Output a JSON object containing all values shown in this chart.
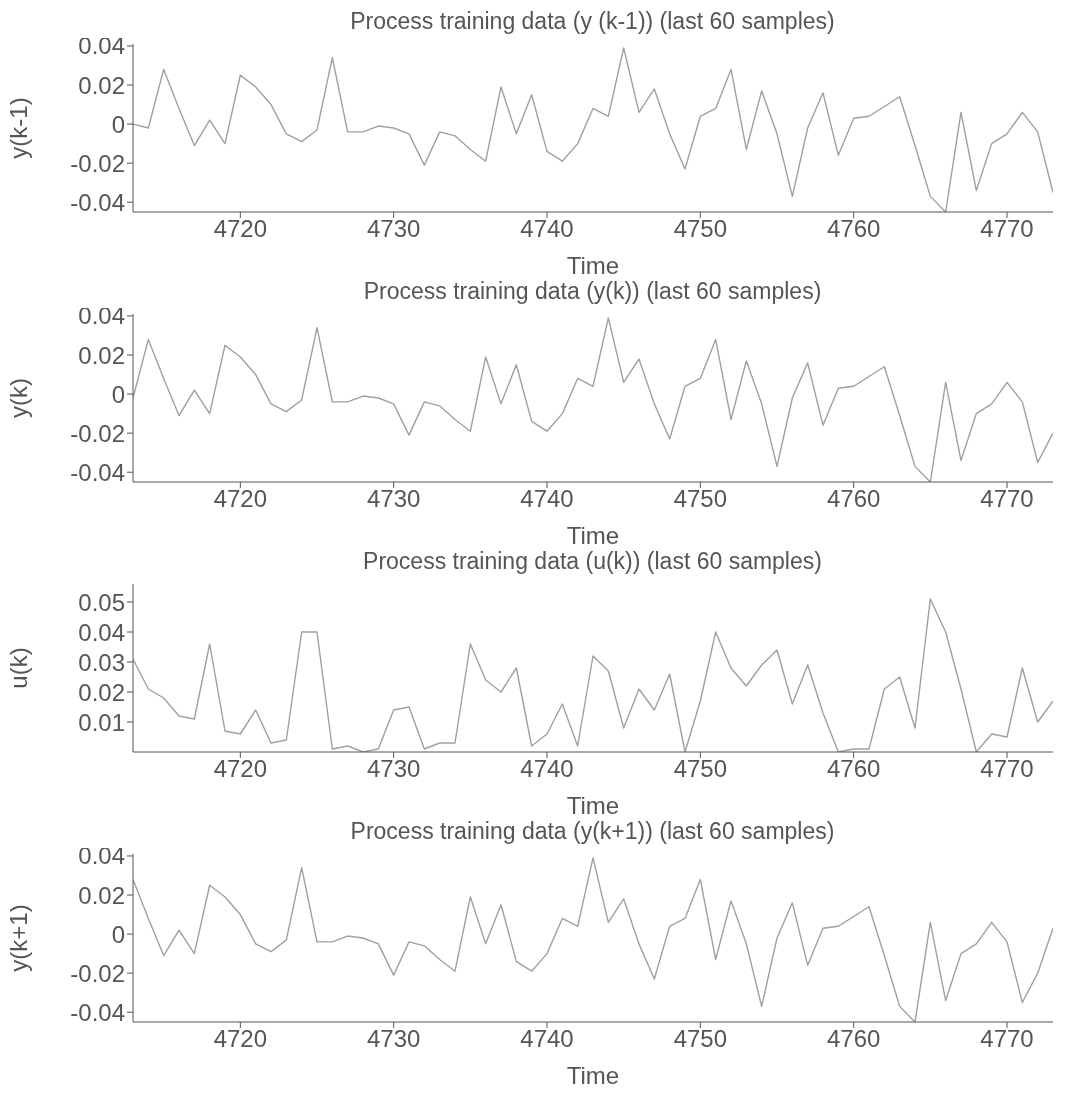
{
  "chart_data": [
    {
      "type": "line",
      "title": "Process training data (y (k-1)) (last 60 samples)",
      "xlabel": "Time",
      "ylabel": "y(k-1)",
      "color": "#a0a0a0",
      "xlim": [
        4713,
        4773
      ],
      "xticks": [
        4720,
        4730,
        4740,
        4750,
        4760,
        4770
      ],
      "ylim": [
        -0.045,
        0.041
      ],
      "yticks": [
        -0.04,
        -0.02,
        0,
        0.02,
        0.04
      ],
      "x": [
        4713,
        4714,
        4715,
        4716,
        4717,
        4718,
        4719,
        4720,
        4721,
        4722,
        4723,
        4724,
        4725,
        4726,
        4727,
        4728,
        4729,
        4730,
        4731,
        4732,
        4733,
        4734,
        4735,
        4736,
        4737,
        4738,
        4739,
        4740,
        4741,
        4742,
        4743,
        4744,
        4745,
        4746,
        4747,
        4748,
        4749,
        4750,
        4751,
        4752,
        4753,
        4754,
        4755,
        4756,
        4757,
        4758,
        4759,
        4760,
        4761,
        4762,
        4763,
        4764,
        4765,
        4766,
        4767,
        4768,
        4769,
        4770,
        4771,
        4772,
        4773
      ],
      "values": [
        0.0,
        -0.002,
        0.028,
        0.008,
        -0.011,
        0.002,
        -0.01,
        0.025,
        0.019,
        0.01,
        -0.005,
        -0.009,
        -0.003,
        0.034,
        -0.004,
        -0.004,
        -0.001,
        -0.002,
        -0.005,
        -0.021,
        -0.004,
        -0.006,
        -0.013,
        -0.019,
        0.019,
        -0.005,
        0.015,
        -0.014,
        -0.019,
        -0.01,
        0.008,
        0.004,
        0.039,
        0.006,
        0.018,
        -0.005,
        -0.023,
        0.004,
        0.008,
        0.028,
        -0.013,
        0.017,
        -0.005,
        -0.037,
        -0.002,
        0.016,
        -0.016,
        0.003,
        0.004,
        0.009,
        0.014,
        -0.011,
        -0.037,
        -0.045,
        0.006,
        -0.034,
        -0.01,
        -0.005,
        0.006,
        -0.004,
        -0.035
      ]
    },
    {
      "type": "line",
      "title": "Process training data (y(k)) (last 60 samples)",
      "xlabel": "Time",
      "ylabel": "y(k)",
      "color": "#a0a0a0",
      "xlim": [
        4713,
        4773
      ],
      "xticks": [
        4720,
        4730,
        4740,
        4750,
        4760,
        4770
      ],
      "ylim": [
        -0.045,
        0.041
      ],
      "yticks": [
        -0.04,
        -0.02,
        0,
        0.02,
        0.04
      ],
      "x": [
        4713,
        4714,
        4715,
        4716,
        4717,
        4718,
        4719,
        4720,
        4721,
        4722,
        4723,
        4724,
        4725,
        4726,
        4727,
        4728,
        4729,
        4730,
        4731,
        4732,
        4733,
        4734,
        4735,
        4736,
        4737,
        4738,
        4739,
        4740,
        4741,
        4742,
        4743,
        4744,
        4745,
        4746,
        4747,
        4748,
        4749,
        4750,
        4751,
        4752,
        4753,
        4754,
        4755,
        4756,
        4757,
        4758,
        4759,
        4760,
        4761,
        4762,
        4763,
        4764,
        4765,
        4766,
        4767,
        4768,
        4769,
        4770,
        4771,
        4772,
        4773
      ],
      "values": [
        -0.002,
        0.028,
        0.008,
        -0.011,
        0.002,
        -0.01,
        0.025,
        0.019,
        0.01,
        -0.005,
        -0.009,
        -0.003,
        0.034,
        -0.004,
        -0.004,
        -0.001,
        -0.002,
        -0.005,
        -0.021,
        -0.004,
        -0.006,
        -0.013,
        -0.019,
        0.019,
        -0.005,
        0.015,
        -0.014,
        -0.019,
        -0.01,
        0.008,
        0.004,
        0.039,
        0.006,
        0.018,
        -0.005,
        -0.023,
        0.004,
        0.008,
        0.028,
        -0.013,
        0.017,
        -0.005,
        -0.037,
        -0.002,
        0.016,
        -0.016,
        0.003,
        0.004,
        0.009,
        0.014,
        -0.011,
        -0.037,
        -0.045,
        0.006,
        -0.034,
        -0.01,
        -0.005,
        0.006,
        -0.004,
        -0.035,
        -0.02
      ]
    },
    {
      "type": "line",
      "title": "Process training data (u(k)) (last 60 samples)",
      "xlabel": "Time",
      "ylabel": "u(k)",
      "color": "#a0a0a0",
      "xlim": [
        4713,
        4773
      ],
      "xticks": [
        4720,
        4730,
        4740,
        4750,
        4760,
        4770
      ],
      "ylim": [
        0,
        0.056
      ],
      "yticks": [
        0.01,
        0.02,
        0.03,
        0.04,
        0.05
      ],
      "x": [
        4713,
        4714,
        4715,
        4716,
        4717,
        4718,
        4719,
        4720,
        4721,
        4722,
        4723,
        4724,
        4725,
        4726,
        4727,
        4728,
        4729,
        4730,
        4731,
        4732,
        4733,
        4734,
        4735,
        4736,
        4737,
        4738,
        4739,
        4740,
        4741,
        4742,
        4743,
        4744,
        4745,
        4746,
        4747,
        4748,
        4749,
        4750,
        4751,
        4752,
        4753,
        4754,
        4755,
        4756,
        4757,
        4758,
        4759,
        4760,
        4761,
        4762,
        4763,
        4764,
        4765,
        4766,
        4767,
        4768,
        4769,
        4770,
        4771,
        4772,
        4773
      ],
      "values": [
        0.031,
        0.021,
        0.018,
        0.012,
        0.011,
        0.036,
        0.007,
        0.006,
        0.014,
        0.003,
        0.004,
        0.04,
        0.04,
        0.001,
        0.002,
        0.0,
        0.001,
        0.014,
        0.015,
        0.001,
        0.003,
        0.003,
        0.036,
        0.024,
        0.02,
        0.028,
        0.002,
        0.006,
        0.016,
        0.002,
        0.032,
        0.027,
        0.008,
        0.021,
        0.014,
        0.026,
        0.0,
        0.017,
        0.04,
        0.028,
        0.022,
        0.029,
        0.034,
        0.016,
        0.029,
        0.013,
        0.0,
        0.001,
        0.001,
        0.021,
        0.025,
        0.008,
        0.051,
        0.04,
        0.021,
        0.0,
        0.006,
        0.005,
        0.028,
        0.01,
        0.017
      ]
    },
    {
      "type": "line",
      "title": "Process training data (y(k+1)) (last 60 samples)",
      "xlabel": "Time",
      "ylabel": "y(k+1)",
      "color": "#a0a0a0",
      "xlim": [
        4713,
        4773
      ],
      "xticks": [
        4720,
        4730,
        4740,
        4750,
        4760,
        4770
      ],
      "ylim": [
        -0.045,
        0.041
      ],
      "yticks": [
        -0.04,
        -0.02,
        0,
        0.02,
        0.04
      ],
      "x": [
        4713,
        4714,
        4715,
        4716,
        4717,
        4718,
        4719,
        4720,
        4721,
        4722,
        4723,
        4724,
        4725,
        4726,
        4727,
        4728,
        4729,
        4730,
        4731,
        4732,
        4733,
        4734,
        4735,
        4736,
        4737,
        4738,
        4739,
        4740,
        4741,
        4742,
        4743,
        4744,
        4745,
        4746,
        4747,
        4748,
        4749,
        4750,
        4751,
        4752,
        4753,
        4754,
        4755,
        4756,
        4757,
        4758,
        4759,
        4760,
        4761,
        4762,
        4763,
        4764,
        4765,
        4766,
        4767,
        4768,
        4769,
        4770,
        4771,
        4772,
        4773
      ],
      "values": [
        0.028,
        0.008,
        -0.011,
        0.002,
        -0.01,
        0.025,
        0.019,
        0.01,
        -0.005,
        -0.009,
        -0.003,
        0.034,
        -0.004,
        -0.004,
        -0.001,
        -0.002,
        -0.005,
        -0.021,
        -0.004,
        -0.006,
        -0.013,
        -0.019,
        0.019,
        -0.005,
        0.015,
        -0.014,
        -0.019,
        -0.01,
        0.008,
        0.004,
        0.039,
        0.006,
        0.018,
        -0.005,
        -0.023,
        0.004,
        0.008,
        0.028,
        -0.013,
        0.017,
        -0.005,
        -0.037,
        -0.002,
        0.016,
        -0.016,
        0.003,
        0.004,
        0.009,
        0.014,
        -0.011,
        -0.037,
        -0.045,
        0.006,
        -0.034,
        -0.01,
        -0.005,
        0.006,
        -0.004,
        -0.035,
        -0.02,
        0.003
      ]
    }
  ]
}
